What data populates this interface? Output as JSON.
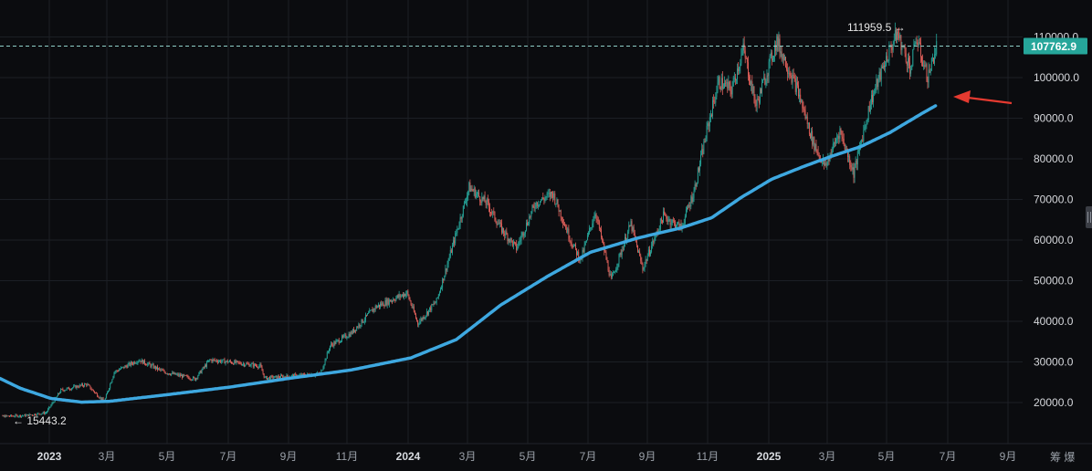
{
  "chart_data": {
    "type": "candlestick",
    "x_axis": {
      "tick_labels": [
        "2023",
        "3月",
        "5月",
        "7月",
        "9月",
        "11月",
        "2024",
        "3月",
        "5月",
        "7月",
        "9月",
        "11月",
        "2025",
        "3月",
        "5月",
        "7月",
        "9月"
      ],
      "bold_labels": [
        "2023",
        "2024",
        "2025"
      ],
      "start": "2022-11-15",
      "end": "2025-10-01"
    },
    "y_axis": {
      "tick_labels": [
        "20000.0",
        "30000.0",
        "40000.0",
        "50000.0",
        "60000.0",
        "70000.0",
        "80000.0",
        "90000.0",
        "100000.0",
        "110000.0"
      ],
      "ylim": [
        12000,
        115000
      ],
      "position": "right"
    },
    "price_series": {
      "name": "",
      "keypoints": [
        [
          "2022-11-15",
          16500
        ],
        [
          "2022-12-20",
          16800
        ],
        [
          "2023-01-10",
          17500
        ],
        [
          "2023-01-25",
          23000
        ],
        [
          "2023-02-20",
          24500
        ],
        [
          "2023-03-10",
          20200
        ],
        [
          "2023-03-20",
          27500
        ],
        [
          "2023-04-14",
          30500
        ],
        [
          "2023-05-10",
          27500
        ],
        [
          "2023-06-10",
          25800
        ],
        [
          "2023-06-25",
          30500
        ],
        [
          "2023-07-15",
          30000
        ],
        [
          "2023-08-15",
          29000
        ],
        [
          "2023-08-20",
          26000
        ],
        [
          "2023-09-15",
          26500
        ],
        [
          "2023-10-15",
          27000
        ],
        [
          "2023-10-25",
          34000
        ],
        [
          "2023-11-15",
          37000
        ],
        [
          "2023-12-10",
          43500
        ],
        [
          "2024-01-11",
          47000
        ],
        [
          "2024-01-22",
          39500
        ],
        [
          "2024-02-10",
          45000
        ],
        [
          "2024-02-28",
          60000
        ],
        [
          "2024-03-14",
          73000
        ],
        [
          "2024-04-01",
          69000
        ],
        [
          "2024-04-15",
          63000
        ],
        [
          "2024-05-01",
          58000
        ],
        [
          "2024-05-20",
          69000
        ],
        [
          "2024-06-07",
          71500
        ],
        [
          "2024-06-25",
          60000
        ],
        [
          "2024-07-05",
          55000
        ],
        [
          "2024-07-20",
          67000
        ],
        [
          "2024-08-05",
          50000
        ],
        [
          "2024-08-25",
          64000
        ],
        [
          "2024-09-06",
          53000
        ],
        [
          "2024-09-27",
          66000
        ],
        [
          "2024-10-15",
          63000
        ],
        [
          "2024-10-28",
          72000
        ],
        [
          "2024-11-12",
          89000
        ],
        [
          "2024-11-22",
          99000
        ],
        [
          "2024-12-05",
          97000
        ],
        [
          "2024-12-17",
          107000
        ],
        [
          "2024-12-30",
          93000
        ],
        [
          "2025-01-20",
          109000
        ],
        [
          "2025-02-10",
          97000
        ],
        [
          "2025-02-26",
          84000
        ],
        [
          "2025-03-10",
          78000
        ],
        [
          "2025-03-25",
          87000
        ],
        [
          "2025-04-08",
          76500
        ],
        [
          "2025-04-25",
          94000
        ],
        [
          "2025-05-10",
          104000
        ],
        [
          "2025-05-22",
          111000
        ],
        [
          "2025-06-05",
          102000
        ],
        [
          "2025-06-10",
          110000
        ],
        [
          "2025-06-22",
          100000
        ],
        [
          "2025-07-01",
          107762.9
        ]
      ],
      "colors": {
        "up": "#26a69a",
        "down": "#e0605a"
      }
    },
    "moving_average": {
      "name": "",
      "color": "#3ea8e0",
      "keypoints": [
        [
          "2022-11-15",
          27000
        ],
        [
          "2022-12-15",
          23500
        ],
        [
          "2023-01-15",
          21000
        ],
        [
          "2023-02-15",
          20100
        ],
        [
          "2023-03-15",
          20300
        ],
        [
          "2023-05-15",
          22000
        ],
        [
          "2023-07-15",
          23800
        ],
        [
          "2023-09-15",
          26000
        ],
        [
          "2023-11-15",
          28000
        ],
        [
          "2024-01-15",
          31000
        ],
        [
          "2024-03-01",
          35500
        ],
        [
          "2024-04-15",
          44000
        ],
        [
          "2024-06-01",
          51000
        ],
        [
          "2024-07-15",
          57000
        ],
        [
          "2024-09-01",
          60500
        ],
        [
          "2024-10-15",
          63000
        ],
        [
          "2024-11-15",
          65500
        ],
        [
          "2024-12-15",
          70500
        ],
        [
          "2025-01-15",
          75000
        ],
        [
          "2025-02-15",
          78000
        ],
        [
          "2025-03-15",
          80500
        ],
        [
          "2025-04-15",
          83000
        ],
        [
          "2025-05-15",
          86500
        ],
        [
          "2025-06-15",
          91000
        ],
        [
          "2025-07-01",
          93200
        ]
      ]
    },
    "annotations": {
      "high_label": "111959.5 →",
      "high_value": 111959.5,
      "low_label": "← 15443.2",
      "low_value": 15443.2,
      "last_price_label": "107762.9",
      "last_price_value": 107762.9,
      "last_price_color": "#26a69a",
      "arrow_color": "#e53a30"
    },
    "grid": true
  },
  "footer": {
    "right_text": "筹 爆"
  }
}
